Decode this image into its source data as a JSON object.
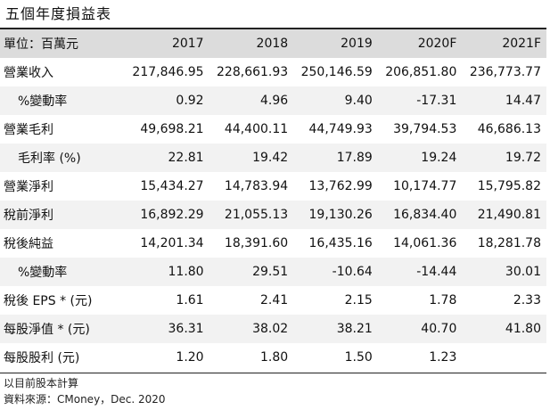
{
  "title": "五個年度損益表",
  "header": {
    "label": "單位：百萬元",
    "years": [
      "2017",
      "2018",
      "2019",
      "2020F",
      "2021F"
    ]
  },
  "rows": [
    {
      "label": "營業收入",
      "values": [
        "217,846.95",
        "228,661.93",
        "250,146.59",
        "206,851.80",
        "236,773.77"
      ]
    },
    {
      "label": "%變動率",
      "values": [
        "0.92",
        "4.96",
        "9.40",
        "-17.31",
        "14.47"
      ]
    },
    {
      "label": "營業毛利",
      "values": [
        "49,698.21",
        "44,400.11",
        "44,749.93",
        "39,794.53",
        "46,686.13"
      ]
    },
    {
      "label": "毛利率 (%)",
      "values": [
        "22.81",
        "19.42",
        "17.89",
        "19.24",
        "19.72"
      ]
    },
    {
      "label": "營業淨利",
      "values": [
        "15,434.27",
        "14,783.94",
        "13,762.99",
        "10,174.77",
        "15,795.82"
      ]
    },
    {
      "label": "稅前淨利",
      "values": [
        "16,892.29",
        "21,055.13",
        "19,130.26",
        "16,834.40",
        "21,490.81"
      ]
    },
    {
      "label": "稅後純益",
      "values": [
        "14,201.34",
        "18,391.60",
        "16,435.16",
        "14,061.36",
        "18,281.78"
      ]
    },
    {
      "label": "%變動率",
      "values": [
        "11.80",
        "29.51",
        "-10.64",
        "-14.44",
        "30.01"
      ]
    },
    {
      "label": "稅後 EPS * (元)",
      "values": [
        "1.61",
        "2.41",
        "2.15",
        "1.78",
        "2.33"
      ]
    },
    {
      "label": "每股淨值 * (元)",
      "values": [
        "36.31",
        "38.02",
        "38.21",
        "40.70",
        "41.80"
      ]
    },
    {
      "label": "每股股利 (元)",
      "values": [
        "1.20",
        "1.80",
        "1.50",
        "1.23",
        ""
      ]
    }
  ],
  "notes": {
    "basis": "以目前股本計算",
    "source": "資料來源：CMoney，Dec. 2020"
  }
}
